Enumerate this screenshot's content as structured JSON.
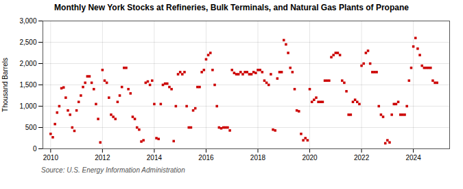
{
  "chart_data": {
    "type": "scatter",
    "title": "Monthly New York Stocks at Refineries, Bulk Terminals, and Natural Gas Plants of Propane",
    "ylabel": "Thousand Barrels",
    "source": "Source: U.S. Energy Information Administration",
    "color": "#cc0000",
    "marker": "square",
    "grid": true,
    "xlim": [
      2009.7,
      2025.4
    ],
    "xticks": [
      2010,
      2012,
      2014,
      2016,
      2018,
      2020,
      2022,
      2024
    ],
    "ylim": [
      0,
      3000
    ],
    "yticks": [
      0,
      500,
      {
        "value": 1000,
        "label": "1,000"
      },
      {
        "value": 1500,
        "label": "1,500"
      },
      {
        "value": 2000,
        "label": "2,000"
      },
      {
        "value": 2500,
        "label": "2,500"
      },
      {
        "value": 3000,
        "label": "3,000"
      }
    ],
    "x": [
      2010.0,
      2010.083,
      2010.167,
      2010.25,
      2010.333,
      2010.417,
      2010.5,
      2010.583,
      2010.667,
      2010.75,
      2010.833,
      2010.917,
      2011.0,
      2011.083,
      2011.167,
      2011.25,
      2011.333,
      2011.417,
      2011.5,
      2011.583,
      2011.667,
      2011.75,
      2011.833,
      2011.917,
      2012.0,
      2012.083,
      2012.167,
      2012.25,
      2012.333,
      2012.417,
      2012.5,
      2012.583,
      2012.667,
      2012.75,
      2012.833,
      2012.917,
      2013.0,
      2013.083,
      2013.167,
      2013.25,
      2013.333,
      2013.417,
      2013.5,
      2013.583,
      2013.667,
      2013.75,
      2013.833,
      2013.917,
      2014.0,
      2014.083,
      2014.167,
      2014.25,
      2014.333,
      2014.417,
      2014.5,
      2014.583,
      2014.667,
      2014.75,
      2014.833,
      2014.917,
      2015.0,
      2015.083,
      2015.167,
      2015.25,
      2015.333,
      2015.417,
      2015.5,
      2015.583,
      2015.667,
      2015.75,
      2015.833,
      2015.917,
      2016.0,
      2016.083,
      2016.167,
      2016.25,
      2016.333,
      2016.417,
      2016.5,
      2016.583,
      2016.667,
      2016.75,
      2016.833,
      2016.917,
      2017.0,
      2017.083,
      2017.167,
      2017.25,
      2017.333,
      2017.417,
      2017.5,
      2017.583,
      2017.667,
      2017.75,
      2017.833,
      2017.917,
      2018.0,
      2018.083,
      2018.167,
      2018.25,
      2018.333,
      2018.417,
      2018.5,
      2018.583,
      2018.667,
      2018.75,
      2018.833,
      2018.917,
      2019.0,
      2019.083,
      2019.167,
      2019.25,
      2019.333,
      2019.417,
      2019.5,
      2019.583,
      2019.667,
      2019.75,
      2019.833,
      2019.917,
      2020.0,
      2020.083,
      2020.167,
      2020.25,
      2020.333,
      2020.417,
      2020.5,
      2020.583,
      2020.667,
      2020.75,
      2020.833,
      2020.917,
      2021.0,
      2021.083,
      2021.167,
      2021.25,
      2021.333,
      2021.417,
      2021.5,
      2021.583,
      2021.667,
      2021.75,
      2021.833,
      2021.917,
      2022.0,
      2022.083,
      2022.167,
      2022.25,
      2022.333,
      2022.417,
      2022.5,
      2022.583,
      2022.667,
      2022.75,
      2022.833,
      2022.917,
      2023.0,
      2023.083,
      2023.167,
      2023.25,
      2023.333,
      2023.417,
      2023.5,
      2023.583,
      2023.667,
      2023.75,
      2023.833,
      2023.917,
      2024.0,
      2024.083,
      2024.167,
      2024.25,
      2024.333,
      2024.417,
      2024.5,
      2024.583,
      2024.667,
      2024.75,
      2024.833,
      2024.917
    ],
    "values": [
      350,
      270,
      580,
      850,
      1000,
      1420,
      1440,
      1200,
      900,
      800,
      500,
      420,
      900,
      1100,
      1250,
      1450,
      1550,
      1700,
      1700,
      1550,
      1400,
      1050,
      700,
      150,
      1850,
      1600,
      1550,
      1200,
      800,
      750,
      700,
      1100,
      1250,
      1450,
      1900,
      1900,
      1400,
      1300,
      750,
      700,
      500,
      450,
      170,
      200,
      1550,
      1580,
      1500,
      1600,
      1050,
      250,
      230,
      1050,
      1500,
      1530,
      1530,
      1450,
      1400,
      180,
      1000,
      1750,
      1800,
      1750,
      1800,
      1000,
      500,
      500,
      900,
      950,
      1450,
      1450,
      1800,
      1850,
      2100,
      2200,
      2250,
      1850,
      1500,
      1000,
      500,
      480,
      500,
      500,
      500,
      430,
      1850,
      1780,
      1750,
      1750,
      1800,
      1750,
      1800,
      1800,
      1750,
      1750,
      1800,
      1780,
      1850,
      1850,
      1800,
      1600,
      1550,
      1500,
      1750,
      450,
      430,
      1650,
      1800,
      1800,
      2550,
      2450,
      2250,
      1900,
      1800,
      1400,
      900,
      880,
      350,
      200,
      250,
      200,
      1400,
      1100,
      1150,
      1200,
      1100,
      1100,
      1100,
      1600,
      1600,
      1600,
      2150,
      2200,
      2250,
      2250,
      2200,
      1600,
      1550,
      1350,
      800,
      800,
      1100,
      1150,
      1100,
      1050,
      1950,
      2000,
      2250,
      2300,
      2000,
      1800,
      1800,
      1800,
      1000,
      800,
      750,
      130,
      200,
      150,
      800,
      1050,
      1050,
      1100,
      800,
      800,
      800,
      1000,
      1600,
      1900,
      2400,
      2600,
      2350,
      2200,
      1950,
      1900,
      1900,
      1900,
      1900,
      1600,
      1550,
      1550
    ]
  }
}
